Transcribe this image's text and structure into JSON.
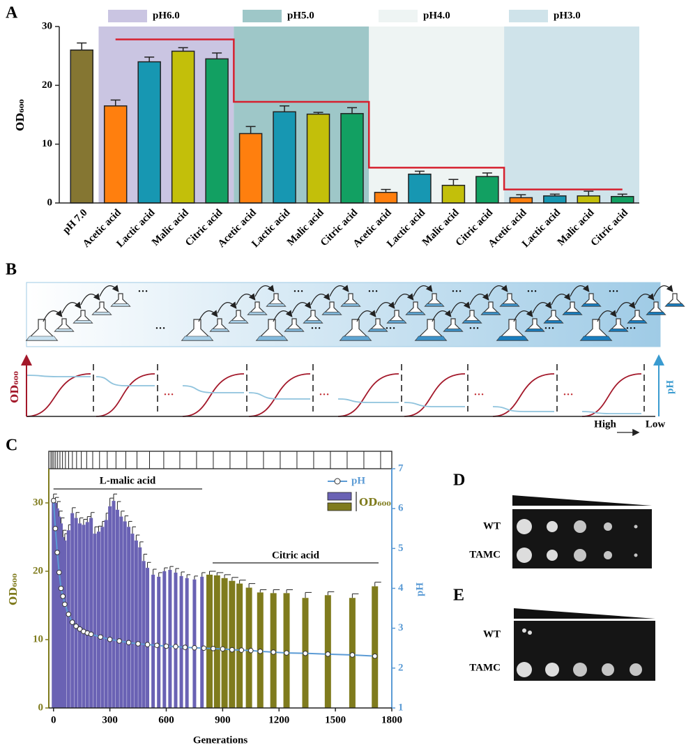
{
  "panel_labels": [
    "A",
    "B",
    "C",
    "D",
    "E"
  ],
  "chart_data": [
    {
      "type": "bar",
      "ylabel": "OD₆₀₀",
      "categories": [
        "pH 7.0",
        "Acetic acid",
        "Lactic acid",
        "Malic acid",
        "Citric acid",
        "Acetic acid",
        "Lactic acid",
        "Malic acid",
        "Citric acid",
        "Acetic acid",
        "Lactic acid",
        "Malic acid",
        "Citric acid",
        "Acetic acid",
        "Lactic acid",
        "Malic acid",
        "Citric acid"
      ],
      "values": [
        26,
        16.5,
        24,
        25.8,
        24.5,
        11.8,
        15.5,
        15.1,
        15.2,
        1.8,
        4.9,
        3,
        4.5,
        0.9,
        1.2,
        1.2,
        1.1
      ],
      "errors": [
        1.2,
        1,
        0.8,
        0.6,
        1,
        1.2,
        1,
        0.3,
        1,
        0.5,
        0.5,
        1,
        0.6,
        0.5,
        0.3,
        0.8,
        0.4
      ],
      "colors": [
        "#857632",
        "#ff7f0e",
        "#1797b2",
        "#c3bf0a",
        "#12a062",
        "#ff7f0e",
        "#1797b2",
        "#c3bf0a",
        "#12a062",
        "#ff7f0e",
        "#1797b2",
        "#c3bf0a",
        "#12a062",
        "#ff7f0e",
        "#1797b2",
        "#c3bf0a",
        "#12a062"
      ],
      "groups": [
        {
          "name": "pH6.0",
          "color": "#cac5e2"
        },
        {
          "name": "pH5.0",
          "color": "#9ec7c8"
        },
        {
          "name": "pH4.0",
          "color": "#eef4f3"
        },
        {
          "name": "pH3.0",
          "color": "#cfe3ea"
        }
      ],
      "threshold": {
        "color": "#d6202e",
        "values": [
          27.8,
          17.2,
          6,
          2.3
        ]
      },
      "ylim": [
        0,
        30
      ],
      "yticks": [
        0,
        10,
        20,
        30
      ]
    },
    {
      "type": "bar_line",
      "xlabel": "Generations",
      "ylabel": "OD₆₀₀",
      "y2label": "pH",
      "xlim": [
        -25,
        1800
      ],
      "xticks": [
        0,
        300,
        600,
        900,
        1200,
        1500,
        1800
      ],
      "ylim": [
        0,
        35
      ],
      "yticks": [
        0,
        10,
        20,
        30
      ],
      "y2lim": [
        1,
        7
      ],
      "y2ticks": [
        1,
        2,
        3,
        4,
        5,
        6,
        7
      ],
      "annotations": [
        "L-malic acid",
        "Citric acid"
      ],
      "series": [
        {
          "name": "OD₆₀₀",
          "type": "bar",
          "color": "#6a62b4",
          "x": [
            0,
            10,
            20,
            30,
            40,
            50,
            60,
            80,
            100,
            120,
            140,
            160,
            180,
            200,
            220,
            240,
            260,
            280,
            300,
            320,
            340,
            360,
            380,
            400,
            420,
            440,
            460,
            480,
            500,
            530,
            560,
            590,
            620,
            650,
            680,
            710,
            750,
            790
          ],
          "values": [
            30.5,
            30,
            29.2,
            28,
            27,
            25,
            24.5,
            26,
            28.5,
            27.8,
            27,
            26.8,
            27.2,
            27.8,
            25.5,
            25.8,
            26.5,
            27.5,
            29.5,
            30.3,
            29,
            28,
            27.3,
            26.5,
            25.5,
            24.5,
            23.5,
            21.5,
            20.5,
            19.5,
            19.2,
            20,
            20.2,
            19.8,
            19.3,
            19,
            18.8,
            19.2
          ],
          "errors": [
            0.8,
            0.8,
            1,
            0.8,
            0.8,
            1,
            1,
            0.8,
            0.8,
            0.8,
            0.8,
            0.8,
            0.8,
            0.8,
            1,
            0.8,
            0.8,
            1,
            1.2,
            1,
            1.2,
            0.8,
            0.8,
            0.8,
            1,
            0.8,
            0.8,
            1,
            0.8,
            0.8,
            0.6,
            0.5,
            0.5,
            0.6,
            0.6,
            0.5,
            0.5,
            0.6
          ]
        },
        {
          "type": "bar",
          "color": "#7f7b1d",
          "x": [
            830,
            870,
            910,
            950,
            990,
            1040,
            1100,
            1170,
            1240,
            1340,
            1460,
            1590,
            1710
          ],
          "values": [
            19.5,
            19.4,
            19,
            18.6,
            18.2,
            17.6,
            16.9,
            16.8,
            16.8,
            16.1,
            16.5,
            16.1,
            17.8
          ],
          "errors": [
            0.5,
            0.4,
            0.5,
            0.5,
            0.5,
            0.6,
            0.4,
            0.5,
            0.5,
            0.8,
            0.5,
            0.6,
            0.6
          ]
        },
        {
          "name": "pH",
          "type": "line",
          "axis": "y2",
          "color": "#5b9bd5",
          "x": [
            0,
            10,
            20,
            30,
            40,
            50,
            60,
            80,
            100,
            120,
            140,
            160,
            180,
            200,
            250,
            300,
            350,
            400,
            450,
            500,
            550,
            600,
            650,
            700,
            750,
            800,
            850,
            900,
            950,
            1000,
            1050,
            1100,
            1170,
            1240,
            1340,
            1460,
            1590,
            1710
          ],
          "values": [
            6.2,
            5.5,
            4.9,
            4.4,
            4.0,
            3.8,
            3.6,
            3.35,
            3.15,
            3.05,
            2.98,
            2.92,
            2.88,
            2.85,
            2.78,
            2.72,
            2.68,
            2.64,
            2.61,
            2.59,
            2.57,
            2.55,
            2.54,
            2.52,
            2.51,
            2.5,
            2.49,
            2.48,
            2.46,
            2.45,
            2.44,
            2.42,
            2.4,
            2.38,
            2.37,
            2.35,
            2.33,
            2.3
          ]
        }
      ]
    }
  ],
  "panel_b": {
    "ylabel_left": "OD₆₀₀",
    "ylabel_right": "pH",
    "high": "High",
    "low": "Low",
    "ellipsis": "…"
  },
  "panel_d": {
    "rows": [
      "WT",
      "TAMC"
    ]
  },
  "panel_e": {
    "rows": [
      "WT",
      "TAMC"
    ]
  }
}
